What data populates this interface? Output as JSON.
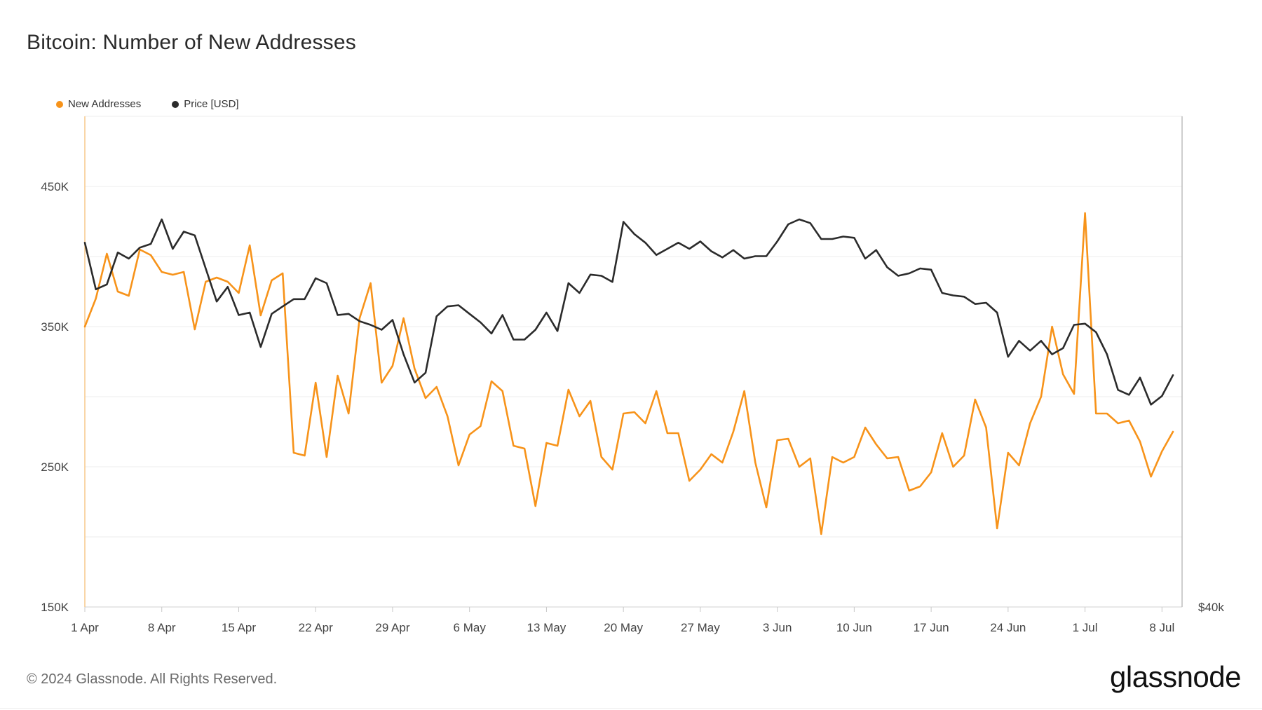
{
  "chart_data": {
    "type": "line",
    "title": "Bitcoin: Number of New Addresses",
    "series": [
      {
        "name": "New Addresses",
        "color": "#f7931a",
        "axis": "left",
        "values": [
          350000,
          370000,
          402000,
          375000,
          372000,
          405000,
          401000,
          389000,
          387000,
          389000,
          348000,
          382000,
          385000,
          382000,
          374000,
          408000,
          358000,
          383000,
          388000,
          260000,
          258000,
          310000,
          257000,
          315000,
          288000,
          356000,
          381000,
          310000,
          322000,
          356000,
          320000,
          299000,
          307000,
          286000,
          251000,
          273000,
          279000,
          311000,
          304000,
          265000,
          263000,
          222000,
          267000,
          265000,
          305000,
          286000,
          297000,
          257000,
          248000,
          288000,
          289000,
          281000,
          304000,
          274000,
          274000,
          240000,
          248000,
          259000,
          253000,
          275000,
          304000,
          253000,
          221000,
          269000,
          270000,
          250000,
          256000,
          202000,
          257000,
          253000,
          257000,
          278000,
          266000,
          256000,
          257000,
          233000,
          236000,
          246000,
          274000,
          250000,
          258000,
          298000,
          278000,
          206000,
          260000,
          251000,
          281000,
          300000,
          350000,
          316000,
          302000,
          431000,
          288000,
          288000,
          281000,
          283000,
          268000,
          243000,
          261000,
          275000
        ]
      },
      {
        "name": "Price [USD]",
        "color": "#2b2b2b",
        "axis": "right",
        "values": [
          69700,
          65900,
          66300,
          68900,
          68400,
          69300,
          69600,
          71600,
          69200,
          70600,
          70300,
          67600,
          64900,
          66100,
          63800,
          64000,
          61200,
          63900,
          64500,
          65100,
          65100,
          66800,
          66400,
          63800,
          63900,
          63300,
          63000,
          62600,
          63400,
          60600,
          58300,
          59100,
          63700,
          64500,
          64600,
          63900,
          63200,
          62300,
          63800,
          61800,
          61800,
          62600,
          64000,
          62500,
          66400,
          65600,
          67100,
          67000,
          66500,
          71400,
          70400,
          69700,
          68700,
          69200,
          69700,
          69200,
          69800,
          69000,
          68500,
          69100,
          68400,
          68600,
          68600,
          69800,
          71200,
          71600,
          71300,
          70000,
          70000,
          70200,
          70100,
          68400,
          69100,
          67700,
          67000,
          67200,
          67600,
          67500,
          65600,
          65400,
          65300,
          64700,
          64800,
          64000,
          60400,
          61700,
          60900,
          61700,
          60600,
          61100,
          63000,
          63100,
          62400,
          60600,
          57700,
          57300,
          58700,
          56500,
          57200,
          58900
        ]
      }
    ],
    "x_tick_labels": [
      "1 Apr",
      "8 Apr",
      "15 Apr",
      "22 Apr",
      "29 Apr",
      "6 May",
      "13 May",
      "20 May",
      "27 May",
      "3 Jun",
      "10 Jun",
      "17 Jun",
      "24 Jun",
      "1 Jul",
      "8 Jul"
    ],
    "x_tick_index": [
      0,
      7,
      14,
      21,
      28,
      35,
      42,
      49,
      56,
      63,
      70,
      77,
      84,
      91,
      98
    ],
    "y_left_ticks": [
      {
        "value": 150000,
        "label": "150K"
      },
      {
        "value": 250000,
        "label": "250K"
      },
      {
        "value": 350000,
        "label": "350K"
      },
      {
        "value": 450000,
        "label": "450K"
      }
    ],
    "y_left_range": [
      150000,
      500000
    ],
    "y_right_range": [
      40000,
      80000
    ],
    "y_right_ticks": [
      {
        "value": 40000,
        "label": "$40k"
      }
    ],
    "grid": true,
    "legend_position": "top-left"
  },
  "legend": {
    "items": [
      {
        "label": "New Addresses",
        "color": "#f7931a"
      },
      {
        "label": "Price [USD]",
        "color": "#2b2b2b"
      }
    ]
  },
  "footer": {
    "copyright": "© 2024 Glassnode. All Rights Reserved.",
    "brand": "glassnode"
  }
}
